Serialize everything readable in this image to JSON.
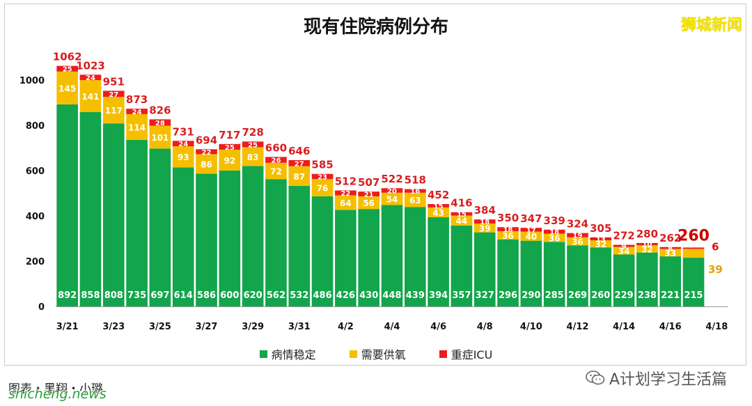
{
  "chart_data": {
    "type": "bar",
    "stacked": true,
    "title": "现有住院病例分布",
    "categories": [
      "3/21",
      "3/22",
      "3/23",
      "3/24",
      "3/25",
      "3/26",
      "3/27",
      "3/28",
      "3/29",
      "3/30",
      "3/31",
      "4/1",
      "4/2",
      "4/3",
      "4/4",
      "4/5",
      "4/6",
      "4/7",
      "4/8",
      "4/9",
      "4/10",
      "4/11",
      "4/12",
      "4/13",
      "4/14",
      "4/15",
      "4/16",
      "4/17",
      "4/18"
    ],
    "x_tick_labels": [
      "3/21",
      "3/23",
      "3/25",
      "3/27",
      "3/29",
      "3/31",
      "4/2",
      "4/4",
      "4/6",
      "4/8",
      "4/10",
      "4/12",
      "4/14",
      "4/16",
      "4/18"
    ],
    "series": [
      {
        "name": "病情稳定",
        "color": "#12a54b",
        "values": [
          892,
          858,
          808,
          735,
          697,
          614,
          586,
          600,
          620,
          562,
          532,
          486,
          426,
          430,
          448,
          439,
          394,
          357,
          327,
          296,
          290,
          285,
          269,
          260,
          229,
          238,
          221,
          215,
          null
        ]
      },
      {
        "name": "需要供氧",
        "color": "#f5bf00",
        "values": [
          145,
          141,
          117,
          114,
          101,
          93,
          86,
          92,
          83,
          72,
          87,
          76,
          64,
          56,
          54,
          63,
          43,
          44,
          39,
          36,
          40,
          36,
          36,
          32,
          34,
          32,
          33,
          39,
          null
        ]
      },
      {
        "name": "重症ICU",
        "color": "#ee1c1c",
        "values": [
          25,
          24,
          27,
          24,
          28,
          24,
          22,
          25,
          25,
          26,
          27,
          23,
          22,
          21,
          20,
          16,
          15,
          15,
          18,
          18,
          17,
          18,
          19,
          13,
          9,
          10,
          8,
          6,
          null
        ]
      }
    ],
    "totals": [
      1062,
      1023,
      951,
      873,
      826,
      731,
      694,
      717,
      728,
      660,
      646,
      585,
      512,
      507,
      522,
      518,
      452,
      416,
      384,
      350,
      347,
      339,
      324,
      305,
      272,
      280,
      262,
      260,
      null
    ],
    "yticks": [
      0,
      200,
      400,
      600,
      800,
      1000
    ],
    "ylim": [
      0,
      1150
    ],
    "grid": false,
    "legend_position": "bottom"
  },
  "watermark_top": "狮城新闻",
  "footer": {
    "credit": "图表・黑翔・小璐",
    "site": "shicheng.news",
    "brand": "A计划学习生活篇"
  },
  "colors": {
    "stable": "#12a54b",
    "oxygen": "#f5bf00",
    "icu": "#ee1c1c",
    "total_label": "#d81e1e"
  }
}
